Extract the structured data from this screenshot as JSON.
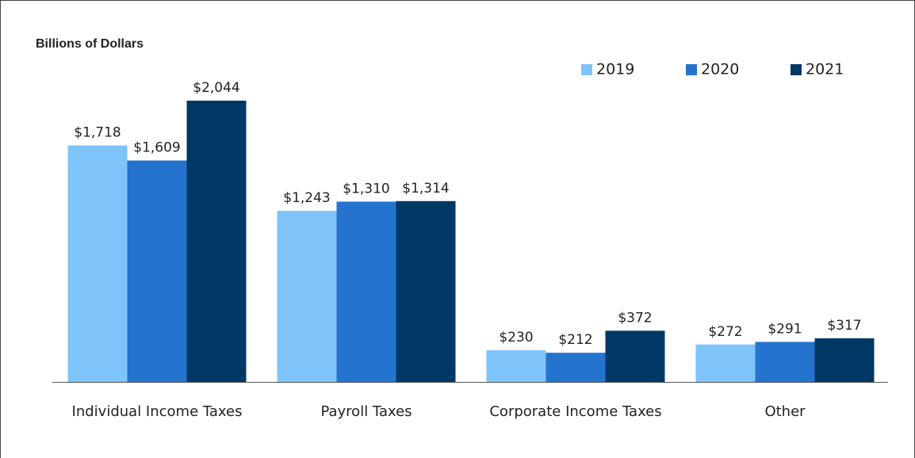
{
  "chart_data": {
    "type": "bar",
    "title": "Billions of Dollars",
    "categories": [
      "Individual Income Taxes",
      "Payroll Taxes",
      "Corporate Income Taxes",
      "Other"
    ],
    "series": [
      {
        "name": "2019",
        "color": "#7fc3fb",
        "values": [
          1718,
          1243,
          230,
          272
        ],
        "value_labels": [
          "$1,718",
          "$1,243",
          "$230",
          "$272"
        ]
      },
      {
        "name": "2020",
        "color": "#2474cf",
        "values": [
          1609,
          1310,
          212,
          291
        ],
        "value_labels": [
          "$1,609",
          "$1,310",
          "$212",
          "$291"
        ]
      },
      {
        "name": "2021",
        "color": "#003865",
        "values": [
          2044,
          1314,
          372,
          317
        ],
        "value_labels": [
          "$2,044",
          "$1,314",
          "$372",
          "$317"
        ]
      }
    ],
    "legend": "top-right"
  }
}
